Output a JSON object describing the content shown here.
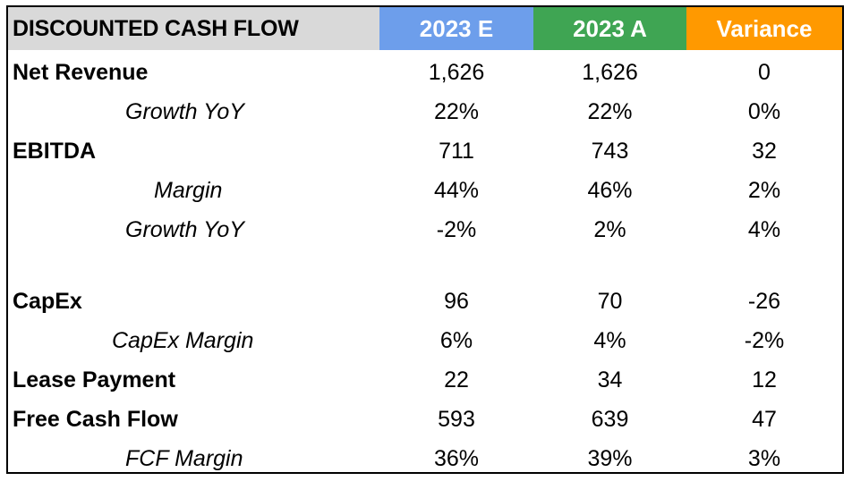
{
  "colors": {
    "header_label_bg": "#d9d9d9",
    "estimate_bg": "#6d9eeb",
    "actual_bg": "#3fa553",
    "variance_bg": "#ff9900"
  },
  "header": {
    "label": "DISCOUNTED CASH FLOW",
    "col_estimate": "2023 E",
    "col_actual": "2023 A",
    "col_variance": "Variance"
  },
  "rows": [
    {
      "label": "Net Revenue",
      "estimate": "1,626",
      "actual": "1,626",
      "variance": "0"
    },
    {
      "label": "Growth YoY",
      "estimate": "22%",
      "actual": "22%",
      "variance": "0%"
    },
    {
      "label": "EBITDA",
      "estimate": "711",
      "actual": "743",
      "variance": "32"
    },
    {
      "label": "Margin",
      "estimate": "44%",
      "actual": "46%",
      "variance": "2%"
    },
    {
      "label": "Growth YoY",
      "estimate": "-2%",
      "actual": "2%",
      "variance": "4%"
    },
    {
      "label": "CapEx",
      "estimate": "96",
      "actual": "70",
      "variance": "-26"
    },
    {
      "label": "CapEx Margin",
      "estimate": "6%",
      "actual": "4%",
      "variance": "-2%"
    },
    {
      "label": "Lease Payment",
      "estimate": "22",
      "actual": "34",
      "variance": "12"
    },
    {
      "label": "Free Cash Flow",
      "estimate": "593",
      "actual": "639",
      "variance": "47"
    },
    {
      "label": "FCF Margin",
      "estimate": "36%",
      "actual": "39%",
      "variance": "3%"
    }
  ]
}
